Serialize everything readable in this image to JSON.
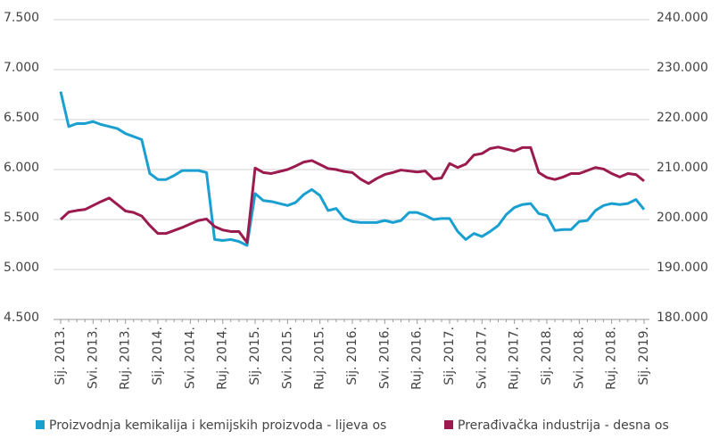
{
  "chart_data": {
    "type": "line",
    "categories": [
      "Sij. 2013.",
      null,
      null,
      null,
      "Svi. 2013.",
      null,
      null,
      null,
      "Ruj. 2013.",
      null,
      null,
      null,
      "Sij. 2014.",
      null,
      null,
      null,
      "Svi. 2014.",
      null,
      null,
      null,
      "Ruj. 2014.",
      null,
      null,
      null,
      "Sij. 2015.",
      null,
      null,
      null,
      "Svi. 2015.",
      null,
      null,
      null,
      "Ruj. 2015.",
      null,
      null,
      null,
      "Sij. 2016.",
      null,
      null,
      null,
      "Svi. 2016.",
      null,
      null,
      null,
      "Ruj. 2016.",
      null,
      null,
      null,
      "Sij. 2017.",
      null,
      null,
      null,
      "Svi. 2017.",
      null,
      null,
      null,
      "Ruj. 2017.",
      null,
      null,
      null,
      "Sij. 2018.",
      null,
      null,
      null,
      "Svi. 2018.",
      null,
      null,
      null,
      "Ruj. 2018.",
      null,
      null,
      null,
      "Sij. 2019."
    ],
    "series": [
      {
        "name": "Proizvodnja kemikalija i kemijskih proizvoda - lijeva os",
        "color": "#1aa0d0",
        "axis": "y",
        "values": [
          6780,
          6430,
          6460,
          6460,
          6480,
          6450,
          6430,
          6410,
          6360,
          6330,
          6300,
          5960,
          5900,
          5900,
          5940,
          5990,
          5990,
          5990,
          5970,
          5300,
          5290,
          5300,
          5280,
          5240,
          5760,
          5690,
          5680,
          5660,
          5640,
          5670,
          5750,
          5800,
          5740,
          5590,
          5610,
          5510,
          5480,
          5470,
          5470,
          5470,
          5490,
          5470,
          5490,
          5570,
          5570,
          5540,
          5500,
          5510,
          5510,
          5380,
          5300,
          5360,
          5330,
          5380,
          5440,
          5550,
          5620,
          5650,
          5660,
          5560,
          5540,
          5390,
          5400,
          5400,
          5480,
          5490,
          5590,
          5640,
          5660,
          5650,
          5660,
          5700,
          5600
        ]
      },
      {
        "name": "Prerađivačka industrija - desna os",
        "color": "#9b1b4f",
        "axis": "y2",
        "values": [
          200000,
          201500,
          201800,
          202000,
          202800,
          203600,
          204300,
          203000,
          201700,
          201400,
          200700,
          198800,
          197200,
          197200,
          197800,
          198400,
          199100,
          199800,
          200100,
          198600,
          197900,
          197600,
          197600,
          195400,
          210300,
          209400,
          209200,
          209600,
          210000,
          210700,
          211500,
          211800,
          211000,
          210200,
          210000,
          209600,
          209400,
          208100,
          207200,
          208200,
          209000,
          209400,
          209900,
          209700,
          209500,
          209700,
          208100,
          208300,
          211200,
          210400,
          211100,
          212900,
          213200,
          214200,
          214500,
          214100,
          213700,
          214400,
          214400,
          209400,
          208400,
          208000,
          208500,
          209200,
          209200,
          209800,
          210400,
          210100,
          209200,
          208500,
          209200,
          209000,
          207700
        ]
      }
    ],
    "ylim": [
      4500,
      7500
    ],
    "yticks": [
      {
        "value": 4500,
        "label": "4.500"
      },
      {
        "value": 5000,
        "label": "5.000"
      },
      {
        "value": 5500,
        "label": "5.500"
      },
      {
        "value": 6000,
        "label": "6.000"
      },
      {
        "value": 6500,
        "label": "6.500"
      },
      {
        "value": 7000,
        "label": "7.000"
      },
      {
        "value": 7500,
        "label": "7.500"
      }
    ],
    "y2lim": [
      180000,
      240000
    ],
    "y2ticks": [
      {
        "value": 180000,
        "label": "180.000"
      },
      {
        "value": 190000,
        "label": "190.000"
      },
      {
        "value": 200000,
        "label": "200.000"
      },
      {
        "value": 210000,
        "label": "210.000"
      },
      {
        "value": 220000,
        "label": "220.000"
      },
      {
        "value": 230000,
        "label": "230.000"
      },
      {
        "value": 240000,
        "label": "240.000"
      }
    ],
    "grid": true,
    "legend": "bottom"
  }
}
